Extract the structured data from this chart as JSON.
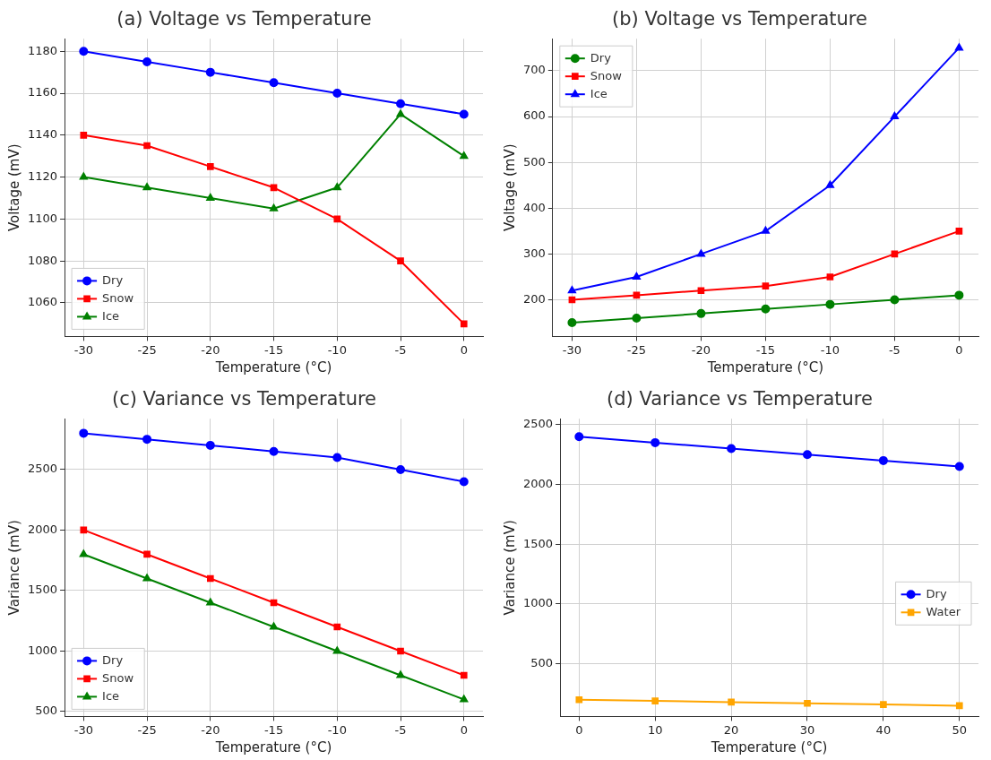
{
  "chart_data": [
    {
      "type": "line",
      "title": "(a) Voltage vs Temperature",
      "xlabel": "Temperature (°C)",
      "ylabel": "Voltage (mV)",
      "x": [
        -30,
        -25,
        -20,
        -15,
        -10,
        -5,
        0
      ],
      "xlim": [
        -31.5,
        1.5
      ],
      "xticks": [
        -30,
        -25,
        -20,
        -15,
        -10,
        -5,
        0
      ],
      "ylim": [
        1044,
        1186
      ],
      "yticks": [
        1060,
        1080,
        1100,
        1120,
        1140,
        1160,
        1180
      ],
      "grid": true,
      "legend": "bottom left",
      "series": [
        {
          "name": "Dry",
          "color": "#0000ff",
          "marker": "circle",
          "values": [
            1180,
            1175,
            1170,
            1165,
            1160,
            1155,
            1150
          ]
        },
        {
          "name": "Snow",
          "color": "#ff0000",
          "marker": "square",
          "values": [
            1140,
            1135,
            1125,
            1115,
            1100,
            1080,
            1050
          ]
        },
        {
          "name": "Ice",
          "color": "#008000",
          "marker": "triangle",
          "values": [
            1120,
            1115,
            1110,
            1105,
            1115,
            1150,
            1130
          ]
        }
      ]
    },
    {
      "type": "line",
      "title": "(b) Voltage vs Temperature",
      "xlabel": "Temperature (°C)",
      "ylabel": "Voltage (mV)",
      "x": [
        -30,
        -25,
        -20,
        -15,
        -10,
        -5,
        0
      ],
      "xlim": [
        -31.5,
        1.5
      ],
      "xticks": [
        -30,
        -25,
        -20,
        -15,
        -10,
        -5,
        0
      ],
      "ylim": [
        120,
        770
      ],
      "yticks": [
        200,
        300,
        400,
        500,
        600,
        700
      ],
      "grid": true,
      "legend": "top left",
      "series": [
        {
          "name": "Dry",
          "color": "#008000",
          "marker": "circle",
          "values": [
            150,
            160,
            170,
            180,
            190,
            200,
            210
          ]
        },
        {
          "name": "Snow",
          "color": "#ff0000",
          "marker": "square",
          "values": [
            200,
            210,
            220,
            230,
            250,
            300,
            350
          ]
        },
        {
          "name": "Ice",
          "color": "#0000ff",
          "marker": "triangle",
          "values": [
            220,
            250,
            300,
            350,
            450,
            600,
            750
          ]
        }
      ]
    },
    {
      "type": "line",
      "title": "(c) Variance vs Temperature",
      "xlabel": "Temperature (°C)",
      "ylabel": "Variance (mV)",
      "x": [
        -30,
        -25,
        -20,
        -15,
        -10,
        -5,
        0
      ],
      "xlim": [
        -31.5,
        1.5
      ],
      "xticks": [
        -30,
        -25,
        -20,
        -15,
        -10,
        -5,
        0
      ],
      "ylim": [
        460,
        2920
      ],
      "yticks": [
        500,
        1000,
        1500,
        2000,
        2500
      ],
      "grid": true,
      "legend": "bottom left",
      "series": [
        {
          "name": "Dry",
          "color": "#0000ff",
          "marker": "circle",
          "values": [
            2800,
            2750,
            2700,
            2650,
            2600,
            2500,
            2400
          ]
        },
        {
          "name": "Snow",
          "color": "#ff0000",
          "marker": "square",
          "values": [
            2000,
            1800,
            1600,
            1400,
            1200,
            1000,
            800
          ]
        },
        {
          "name": "Ice",
          "color": "#008000",
          "marker": "triangle",
          "values": [
            1800,
            1600,
            1400,
            1200,
            1000,
            800,
            600
          ]
        }
      ]
    },
    {
      "type": "line",
      "title": "(d) Variance vs Temperature",
      "xlabel": "Temperature (°C)",
      "ylabel": "Variance (mV)",
      "x": [
        0,
        10,
        20,
        30,
        40,
        50
      ],
      "xlim": [
        -2.5,
        52.5
      ],
      "xticks": [
        0,
        10,
        20,
        30,
        40,
        50
      ],
      "ylim": [
        60,
        2550
      ],
      "yticks": [
        500,
        1000,
        1500,
        2000,
        2500
      ],
      "grid": true,
      "legend": "right",
      "series": [
        {
          "name": "Dry",
          "color": "#0000ff",
          "marker": "circle",
          "values": [
            2400,
            2350,
            2300,
            2250,
            2200,
            2150
          ]
        },
        {
          "name": "Water",
          "color": "#ffa500",
          "marker": "square",
          "values": [
            200,
            190,
            180,
            170,
            160,
            150
          ]
        }
      ]
    }
  ]
}
